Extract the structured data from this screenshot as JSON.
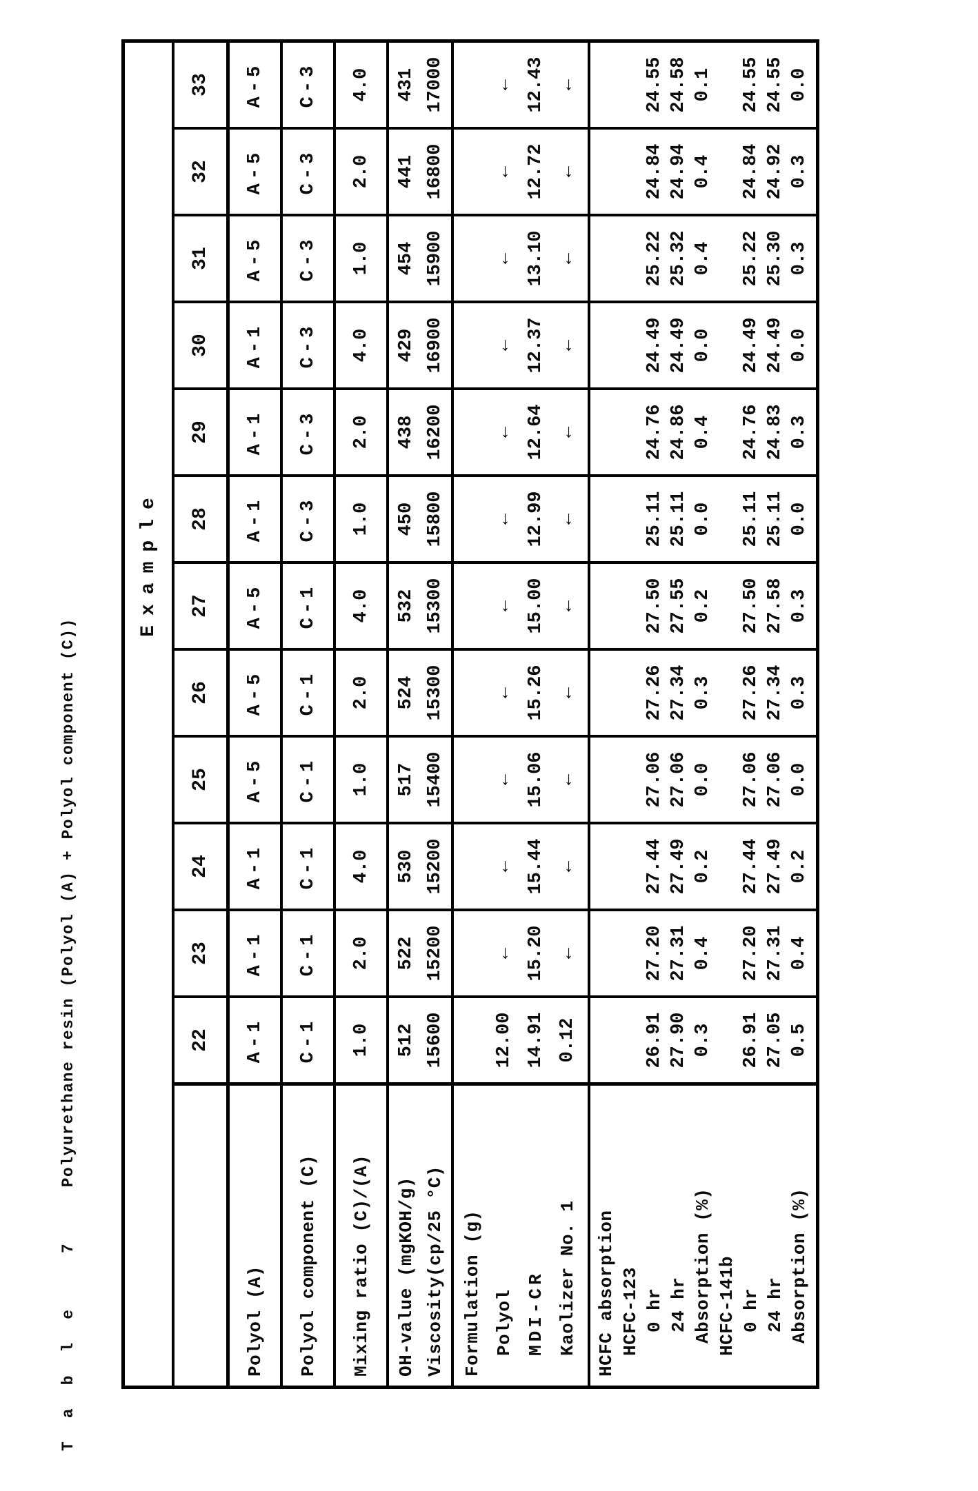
{
  "title": {
    "part1": "Table 7",
    "part2": "Polyurethane resin (Polyol (A) + Polyol component (C))"
  },
  "header": {
    "example_label": "Example"
  },
  "row_labels": {
    "polyol_a": "Polyol (A)",
    "polyol_c": "Polyol component (C)",
    "mixing_ratio": "Mixing ratio (C)/(A)",
    "oh_value": "OH-value (mgKOH/g)",
    "viscosity": "Viscosity(cp/25 °C)"
  },
  "formulation_label_lines": [
    "Formulation (g)",
    "Polyol",
    "MDI-CR",
    "Kaolizer No. 1"
  ],
  "hcfc_label_lines": [
    "HCFC absorption",
    "HCFC-123",
    "0 hr",
    "24 hr",
    "Absorption (%)",
    "HCFC-141b",
    "0 hr",
    "24 hr",
    "Absorption (%)"
  ],
  "columns": [
    {
      "example": "22",
      "polyol_a": "A-1",
      "polyol_c": "C-1",
      "mixing_ratio": "1.0",
      "oh_value": "512",
      "viscosity": "15600",
      "formulation": [
        "",
        "12.00",
        "14.91",
        "0.12"
      ],
      "hcfc": [
        "",
        "",
        "26.91",
        "27.90",
        "0.3",
        "",
        "26.91",
        "27.05",
        "0.5"
      ]
    },
    {
      "example": "23",
      "polyol_a": "A-1",
      "polyol_c": "C-1",
      "mixing_ratio": "2.0",
      "oh_value": "522",
      "viscosity": "15200",
      "formulation": [
        "",
        "←",
        "15.20",
        "←"
      ],
      "hcfc": [
        "",
        "",
        "27.20",
        "27.31",
        "0.4",
        "",
        "27.20",
        "27.31",
        "0.4"
      ]
    },
    {
      "example": "24",
      "polyol_a": "A-1",
      "polyol_c": "C-1",
      "mixing_ratio": "4.0",
      "oh_value": "530",
      "viscosity": "15200",
      "formulation": [
        "",
        "←",
        "15.44",
        "←"
      ],
      "hcfc": [
        "",
        "",
        "27.44",
        "27.49",
        "0.2",
        "",
        "27.44",
        "27.49",
        "0.2"
      ]
    },
    {
      "example": "25",
      "polyol_a": "A-5",
      "polyol_c": "C-1",
      "mixing_ratio": "1.0",
      "oh_value": "517",
      "viscosity": "15400",
      "formulation": [
        "",
        "←",
        "15.06",
        "←"
      ],
      "hcfc": [
        "",
        "",
        "27.06",
        "27.06",
        "0.0",
        "",
        "27.06",
        "27.06",
        "0.0"
      ]
    },
    {
      "example": "26",
      "polyol_a": "A-5",
      "polyol_c": "C-1",
      "mixing_ratio": "2.0",
      "oh_value": "524",
      "viscosity": "15300",
      "formulation": [
        "",
        "←",
        "15.26",
        "←"
      ],
      "hcfc": [
        "",
        "",
        "27.26",
        "27.34",
        "0.3",
        "",
        "27.26",
        "27.34",
        "0.3"
      ]
    },
    {
      "example": "27",
      "polyol_a": "A-5",
      "polyol_c": "C-1",
      "mixing_ratio": "4.0",
      "oh_value": "532",
      "viscosity": "15300",
      "formulation": [
        "",
        "←",
        "15.00",
        "←"
      ],
      "hcfc": [
        "",
        "",
        "27.50",
        "27.55",
        "0.2",
        "",
        "27.50",
        "27.58",
        "0.3"
      ]
    },
    {
      "example": "28",
      "polyol_a": "A-1",
      "polyol_c": "C-3",
      "mixing_ratio": "1.0",
      "oh_value": "450",
      "viscosity": "15800",
      "formulation": [
        "",
        "←",
        "12.99",
        "←"
      ],
      "hcfc": [
        "",
        "",
        "25.11",
        "25.11",
        "0.0",
        "",
        "25.11",
        "25.11",
        "0.0"
      ]
    },
    {
      "example": "29",
      "polyol_a": "A-1",
      "polyol_c": "C-3",
      "mixing_ratio": "2.0",
      "oh_value": "438",
      "viscosity": "16200",
      "formulation": [
        "",
        "←",
        "12.64",
        "←"
      ],
      "hcfc": [
        "",
        "",
        "24.76",
        "24.86",
        "0.4",
        "",
        "24.76",
        "24.83",
        "0.3"
      ]
    },
    {
      "example": "30",
      "polyol_a": "A-1",
      "polyol_c": "C-3",
      "mixing_ratio": "4.0",
      "oh_value": "429",
      "viscosity": "16900",
      "formulation": [
        "",
        "←",
        "12.37",
        "←"
      ],
      "hcfc": [
        "",
        "",
        "24.49",
        "24.49",
        "0.0",
        "",
        "24.49",
        "24.49",
        "0.0"
      ]
    },
    {
      "example": "31",
      "polyol_a": "A-5",
      "polyol_c": "C-3",
      "mixing_ratio": "1.0",
      "oh_value": "454",
      "viscosity": "15900",
      "formulation": [
        "",
        "←",
        "13.10",
        "←"
      ],
      "hcfc": [
        "",
        "",
        "25.22",
        "25.32",
        "0.4",
        "",
        "25.22",
        "25.30",
        "0.3"
      ]
    },
    {
      "example": "32",
      "polyol_a": "A-5",
      "polyol_c": "C-3",
      "mixing_ratio": "2.0",
      "oh_value": "441",
      "viscosity": "16800",
      "formulation": [
        "",
        "←",
        "12.72",
        "←"
      ],
      "hcfc": [
        "",
        "",
        "24.84",
        "24.94",
        "0.4",
        "",
        "24.84",
        "24.92",
        "0.3"
      ]
    },
    {
      "example": "33",
      "polyol_a": "A-5",
      "polyol_c": "C-3",
      "mixing_ratio": "4.0",
      "oh_value": "431",
      "viscosity": "17000",
      "formulation": [
        "",
        "←",
        "12.43",
        "←"
      ],
      "hcfc": [
        "",
        "",
        "24.55",
        "24.58",
        "0.1",
        "",
        "24.55",
        "24.55",
        "0.0"
      ]
    }
  ]
}
